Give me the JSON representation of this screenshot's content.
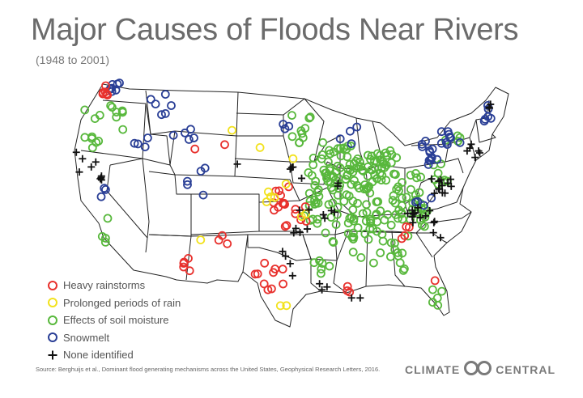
{
  "title": "Major Causes of Floods Near Rivers",
  "subtitle": "(1948 to 2001)",
  "legend": [
    {
      "label": "Heavy rainstorms",
      "color": "#e8312d",
      "marker": "circle"
    },
    {
      "label": "Prolonged periods of rain",
      "color": "#f2e21d",
      "marker": "circle"
    },
    {
      "label": "Effects of soil moisture",
      "color": "#58b83c",
      "marker": "circle"
    },
    {
      "label": "Snowmelt",
      "color": "#2a3f96",
      "marker": "circle"
    },
    {
      "label": "None identified",
      "color": "#111111",
      "marker": "plus"
    }
  ],
  "source": "Source: Berghuijs et al., Dominant flood generating mechanisms across the United States, Geophysical Research Letters, 2016.",
  "brand": {
    "left": "CLIMATE",
    "right": "CENTRAL"
  },
  "map_data": {
    "type": "point-map",
    "region": "Contiguous United States",
    "categories": [
      "Heavy rainstorms",
      "Prolonged periods of rain",
      "Effects of soil moisture",
      "Snowmelt",
      "None identified"
    ],
    "approximate_point_counts": {
      "Heavy rainstorms": 45,
      "Prolonged periods of rain": 12,
      "Effects of soil moisture": 270,
      "Snowmelt": 55,
      "None identified": 65
    }
  }
}
